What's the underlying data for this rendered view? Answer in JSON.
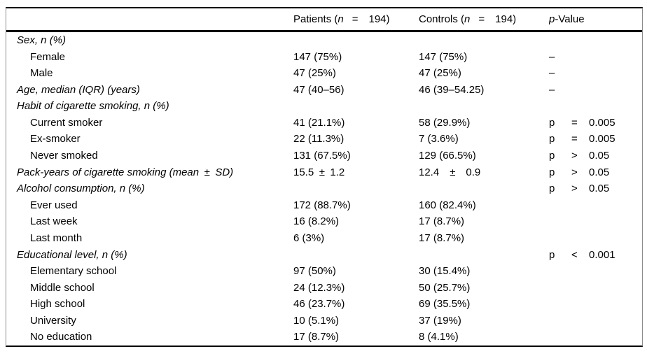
{
  "table": {
    "header": {
      "patients": {
        "prefix": "Patients (",
        "n": "n",
        "op": "=",
        "count": "194)"
      },
      "controls": {
        "prefix": "Controls (",
        "n": "n",
        "op": "=",
        "count": "194)"
      },
      "pvalue": {
        "p": "p",
        "suffix": "-Value"
      }
    },
    "rows": [
      {
        "label": "Sex, n (%)",
        "style": "category",
        "patients": "",
        "controls": "",
        "p": null
      },
      {
        "label": "Female",
        "style": "item",
        "patients": "147 (75%)",
        "controls": "147 (75%)",
        "p": {
          "dash": "–"
        }
      },
      {
        "label": "Male",
        "style": "item",
        "patients": "47 (25%)",
        "controls": "47 (25%)",
        "p": {
          "dash": "–"
        }
      },
      {
        "label": "Age, median (IQR) (years)",
        "style": "category",
        "patients": "47 (40–56)",
        "controls": "46 (39–54.25)",
        "p": {
          "dash": "–"
        }
      },
      {
        "label": "Habit of cigarette smoking, n (%)",
        "style": "category",
        "patients": "",
        "controls": "",
        "p": null
      },
      {
        "label": "Current smoker",
        "style": "item",
        "patients": "41 (21.1%)",
        "controls": "58 (29.9%)",
        "p": {
          "p": "p",
          "op": "=",
          "val": "0.005"
        }
      },
      {
        "label": "Ex-smoker",
        "style": "item",
        "patients": "22 (11.3%)",
        "controls": "7 (3.6%)",
        "p": {
          "p": "p",
          "op": "=",
          "val": "0.005"
        }
      },
      {
        "label": "Never smoked",
        "style": "item",
        "patients": "131 (67.5%)",
        "controls": "129 (66.5%)",
        "p": {
          "p": "p",
          "op": ">",
          "val": "0.05"
        }
      },
      {
        "label": "Pack-years of cigarette smoking (mean ± SD)",
        "style": "category",
        "patients": "15.5 ± 1.2",
        "controls": "12.4 ± 0.9",
        "p": {
          "p": "p",
          "op": ">",
          "val": "0.05"
        }
      },
      {
        "label": "Alcohol consumption, n (%)",
        "style": "category",
        "patients": "",
        "controls": "",
        "p": {
          "p": "p",
          "op": ">",
          "val": "0.05"
        }
      },
      {
        "label": "Ever used",
        "style": "item",
        "patients": "172 (88.7%)",
        "controls": "160 (82.4%)",
        "p": null
      },
      {
        "label": "Last week",
        "style": "item",
        "patients": "16 (8.2%)",
        "controls": "17 (8.7%)",
        "p": null
      },
      {
        "label": "Last month",
        "style": "item",
        "patients": "6 (3%)",
        "controls": "17 (8.7%)",
        "p": null
      },
      {
        "label": "Educational level, n (%)",
        "style": "category",
        "patients": "",
        "controls": "",
        "p": {
          "p": "p",
          "op": "<",
          "val": "0.001"
        }
      },
      {
        "label": "Elementary school",
        "style": "item",
        "patients": "97 (50%)",
        "controls": "30 (15.4%)",
        "p": null
      },
      {
        "label": "Middle school",
        "style": "item",
        "patients": "24 (12.3%)",
        "controls": "50 (25.7%)",
        "p": null
      },
      {
        "label": "High school",
        "style": "item",
        "patients": "46 (23.7%)",
        "controls": "69 (35.5%)",
        "p": null
      },
      {
        "label": "University",
        "style": "item",
        "patients": "10 (5.1%)",
        "controls": "37 (19%)",
        "p": null
      },
      {
        "label": "No education",
        "style": "item",
        "patients": "17 (8.7%)",
        "controls": "8 (4.1%)",
        "p": null
      }
    ]
  }
}
